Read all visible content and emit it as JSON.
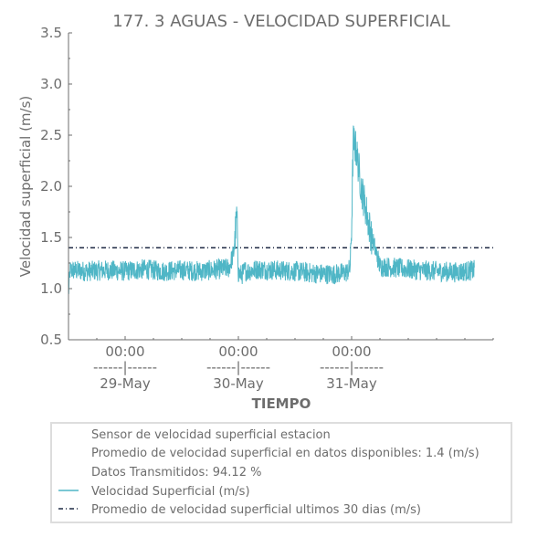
{
  "chart_data": {
    "type": "line",
    "title": "177. 3 AGUAS - VELOCIDAD SUPERFICIAL",
    "xlabel": "TIEMPO",
    "ylabel": "Velocidad superficial (m/s)",
    "ylim": [
      0.5,
      3.5
    ],
    "yticks": [
      "0.5",
      "1.0",
      "1.5",
      "2.0",
      "2.5",
      "3.0",
      "3.5"
    ],
    "xlim": [
      "2024-05-28 12:00",
      "2024-06-01 06:00"
    ],
    "xtick_labels": [
      {
        "time": "2024-05-29 00:00",
        "line1": "00:00",
        "line2": "------|------",
        "line3": "29-May"
      },
      {
        "time": "2024-05-30 00:00",
        "line1": "00:00",
        "line2": "------|------",
        "line3": "30-May"
      },
      {
        "time": "2024-05-31 00:00",
        "line1": "00:00",
        "line2": "------|------",
        "line3": "31-May"
      }
    ],
    "grid": false,
    "legend_placement": "bottom",
    "legend_info": [
      "Sensor de velocidad superficial estacion",
      "Promedio de velocidad superficial en datos disponibles: 1.4 (m/s)",
      "Datos Transmitidos: 94.12 %"
    ],
    "series": [
      {
        "name": "Velocidad Superficial (m/s)",
        "color": "#4fb6c6",
        "noise_amplitude": 0.1,
        "x": [
          "2024-05-28 12:00",
          "2024-05-28 12:20",
          "2024-05-28 16:00",
          "2024-05-28 20:00",
          "2024-05-29 00:00",
          "2024-05-29 04:00",
          "2024-05-29 08:00",
          "2024-05-29 12:00",
          "2024-05-29 16:00",
          "2024-05-29 20:00",
          "2024-05-29 22:00",
          "2024-05-29 23:00",
          "2024-05-29 23:40",
          "2024-05-30 00:00",
          "2024-05-30 00:30",
          "2024-05-30 00:50",
          "2024-05-30 01:20",
          "2024-05-30 02:00",
          "2024-05-30 04:00",
          "2024-05-30 08:00",
          "2024-05-30 12:00",
          "2024-05-30 16:00",
          "2024-05-30 20:00",
          "2024-05-30 23:00",
          "2024-05-30 23:40",
          "2024-05-31 00:00",
          "2024-05-31 00:20",
          "2024-05-31 01:00",
          "2024-05-31 02:00",
          "2024-05-31 03:00",
          "2024-05-31 04:00",
          "2024-05-31 06:00",
          "2024-05-31 10:00",
          "2024-05-31 14:00",
          "2024-05-31 18:00",
          "2024-05-31 22:00",
          "2024-06-01 02:00"
        ],
        "y": [
          0.95,
          1.18,
          1.17,
          1.18,
          1.17,
          1.19,
          1.17,
          1.18,
          1.17,
          1.19,
          1.2,
          1.35,
          1.72,
          1.15,
          1.14,
          1.14,
          1.18,
          1.17,
          1.19,
          1.18,
          1.17,
          1.15,
          1.14,
          1.16,
          1.2,
          1.6,
          2.45,
          2.35,
          2.0,
          1.78,
          1.55,
          1.22,
          1.2,
          1.18,
          1.17,
          1.16,
          1.18
        ]
      },
      {
        "name": "Promedio de velocidad superficial ultimos 30 dias (m/s)",
        "color": "#1f2a44",
        "style": "dash-dot",
        "value": 1.4
      }
    ]
  }
}
